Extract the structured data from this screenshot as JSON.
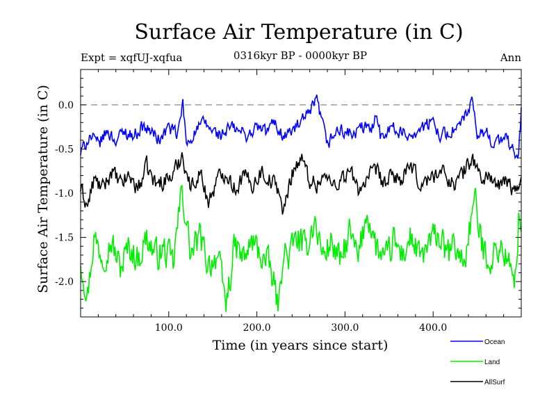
{
  "chart_data": {
    "type": "line",
    "title": "Surface Air Temperature (in C)",
    "subtitle": "0316kyr BP - 0000kyr BP",
    "header_left": "Expt = xqfUJ-xqfua",
    "header_right": "Ann",
    "xlabel": "Time (in years since start)",
    "ylabel": "Surface Air Temperature (in C)",
    "xlim": [
      0,
      500
    ],
    "ylim": [
      -2.4,
      0.4
    ],
    "x_ticks": [
      100,
      200,
      300,
      400
    ],
    "x_tick_labels": [
      "100.0",
      "200.0",
      "300.0",
      "400.0"
    ],
    "y_ticks": [
      0.0,
      -0.5,
      -1.0,
      -1.5,
      -2.0
    ],
    "y_tick_labels": [
      "0.0",
      "-0.5",
      "-1.0",
      "-1.5",
      "-2.0"
    ],
    "reference_line": {
      "y": 0.0,
      "style": "dashed",
      "color": "#888888"
    },
    "series": [
      {
        "name": "Ocean",
        "color": "#0000ff",
        "x": [
          0,
          10,
          20,
          30,
          40,
          50,
          60,
          70,
          80,
          90,
          100,
          110,
          116,
          120,
          130,
          140,
          150,
          160,
          170,
          180,
          190,
          200,
          210,
          220,
          230,
          240,
          250,
          260,
          268,
          275,
          280,
          290,
          300,
          310,
          320,
          330,
          336,
          340,
          350,
          360,
          370,
          380,
          390,
          400,
          410,
          420,
          430,
          444,
          450,
          460,
          470,
          480,
          490,
          497,
          500
        ],
        "values": [
          -0.55,
          -0.35,
          -0.45,
          -0.3,
          -0.4,
          -0.3,
          -0.35,
          -0.25,
          -0.3,
          -0.4,
          -0.25,
          -0.35,
          0.02,
          -0.45,
          -0.3,
          -0.2,
          -0.3,
          -0.35,
          -0.25,
          -0.3,
          -0.35,
          -0.25,
          -0.3,
          -0.2,
          -0.35,
          -0.3,
          -0.2,
          -0.1,
          0.05,
          -0.25,
          -0.45,
          -0.3,
          -0.3,
          -0.35,
          -0.25,
          -0.3,
          -0.05,
          -0.35,
          -0.25,
          -0.3,
          -0.35,
          -0.3,
          -0.25,
          -0.2,
          -0.35,
          -0.3,
          -0.25,
          0.02,
          -0.35,
          -0.3,
          -0.45,
          -0.35,
          -0.5,
          -0.6,
          -0.05
        ]
      },
      {
        "name": "Land",
        "color": "#00ee00",
        "x": [
          0,
          8,
          15,
          25,
          35,
          45,
          55,
          65,
          75,
          85,
          95,
          105,
          115,
          125,
          135,
          145,
          155,
          165,
          175,
          185,
          195,
          205,
          215,
          225,
          230,
          235,
          245,
          255,
          265,
          275,
          285,
          295,
          305,
          315,
          325,
          335,
          345,
          355,
          365,
          375,
          385,
          395,
          405,
          415,
          425,
          435,
          447,
          455,
          465,
          475,
          485,
          492,
          497,
          500
        ],
        "values": [
          -1.75,
          -2.15,
          -1.5,
          -1.7,
          -1.55,
          -1.85,
          -1.6,
          -1.75,
          -1.5,
          -1.7,
          -1.65,
          -1.8,
          -0.95,
          -1.7,
          -1.5,
          -1.8,
          -1.7,
          -2.25,
          -1.6,
          -1.75,
          -1.55,
          -1.7,
          -1.85,
          -2.3,
          -1.6,
          -1.75,
          -1.5,
          -1.65,
          -1.3,
          -1.7,
          -1.55,
          -1.8,
          -1.45,
          -1.75,
          -1.2,
          -1.6,
          -1.8,
          -1.55,
          -1.7,
          -1.5,
          -1.75,
          -1.6,
          -1.45,
          -1.7,
          -1.6,
          -1.8,
          -1.05,
          -1.6,
          -1.75,
          -1.6,
          -1.75,
          -2.1,
          -1.3,
          -1.35
        ]
      },
      {
        "name": "AllSurf",
        "color": "#000000",
        "x": [
          0,
          8,
          15,
          25,
          35,
          45,
          55,
          65,
          75,
          85,
          95,
          105,
          115,
          125,
          135,
          145,
          155,
          165,
          175,
          185,
          195,
          205,
          215,
          225,
          230,
          240,
          250,
          260,
          268,
          275,
          285,
          295,
          305,
          315,
          325,
          335,
          345,
          355,
          365,
          375,
          385,
          395,
          405,
          415,
          425,
          435,
          445,
          455,
          465,
          475,
          485,
          492,
          497,
          500
        ],
        "values": [
          -0.95,
          -1.15,
          -0.85,
          -0.95,
          -0.75,
          -0.9,
          -0.8,
          -0.95,
          -0.7,
          -0.9,
          -0.85,
          -0.8,
          -0.55,
          -0.95,
          -0.75,
          -1.1,
          -0.85,
          -0.75,
          -0.95,
          -0.8,
          -0.9,
          -0.75,
          -0.85,
          -0.95,
          -1.25,
          -0.75,
          -0.6,
          -0.85,
          -0.9,
          -0.8,
          -0.9,
          -0.85,
          -0.75,
          -0.95,
          -0.85,
          -0.75,
          -0.9,
          -0.8,
          -0.85,
          -0.7,
          -0.9,
          -0.85,
          -0.75,
          -0.8,
          -0.9,
          -0.75,
          -0.6,
          -0.85,
          -0.8,
          -0.95,
          -0.85,
          -1.0,
          -0.95,
          -0.7
        ]
      }
    ],
    "legend_position": "bottom-right"
  }
}
